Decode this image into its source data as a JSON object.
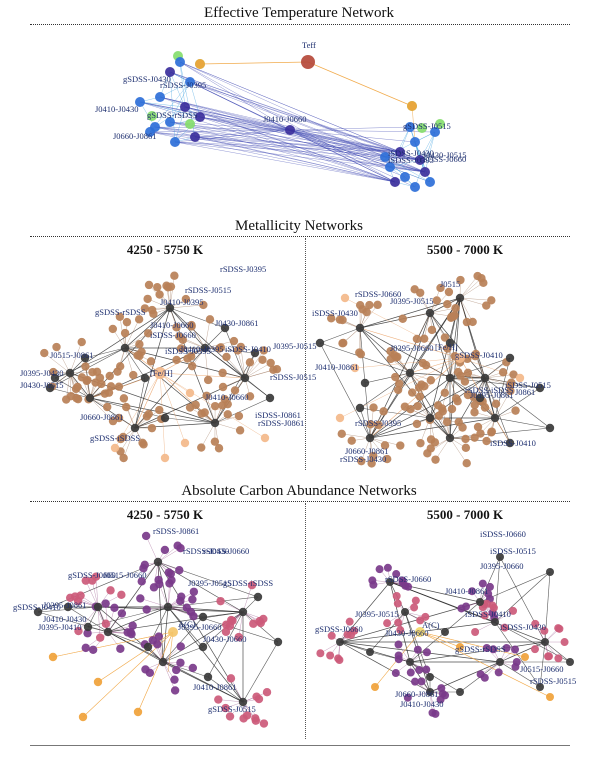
{
  "sections": {
    "teff_title": "Effective Temperature Network",
    "metal_title": "Metallicity Networks",
    "carbon_title": "Absolute Carbon Abundance Networks"
  },
  "panels": {
    "metal_left_title": "4250 - 5750 K",
    "metal_right_title": "5500 - 7000 K",
    "carbon_left_title": "4250 - 5750 K",
    "carbon_right_title": "5500 - 7000 K"
  },
  "colors": {
    "teff_center": "#b5493a",
    "teff_node": "#2e6fd8",
    "teff_dark": "#3b2f9c",
    "teff_light": "#86dd6c",
    "teff_orange": "#f0a23a",
    "metal_node": "#b98057",
    "metal_dark": "#3a3a3a",
    "metal_light": "#f3b98a",
    "carbon_node": "#7a3a8a",
    "carbon_pink": "#cc5a7a",
    "carbon_dark": "#3a3a3a",
    "carbon_orange": "#f0a23a"
  },
  "teff_network": {
    "center": "Teff",
    "labels": [
      "gSDSS-J0430",
      "rSDSS-J0395",
      "J0410-J0430",
      "gSDSS-rSDSS",
      "J0660-J0861",
      "J0410-J0660",
      "gSDSS-J0515",
      "iSDSS-J0430",
      "J0430-J0515",
      "iSDSS-J0395",
      "rSDSS-J0660"
    ]
  },
  "metal_left": {
    "center": "[Fe/H]",
    "labels": [
      "rSDSS-J0395",
      "rSDSS-J0515",
      "J0410-J0395",
      "gSDSS-rSDSS",
      "J0410-J0660",
      "J0430-J0861",
      "iSDSS-J0660",
      "J0515-J0861",
      "J0395-J0430",
      "J0430-J0515",
      "J0410-J0395",
      "iSDSS-J0395",
      "iSDSS-J0410",
      "J0395-J0515",
      "rSDSS-J0515",
      "J0660-J0861",
      "J0410-J0660",
      "gSDSS-iSDSS",
      "rSDSS-J0861",
      "iSDSS-J0861"
    ]
  },
  "metal_right": {
    "center": "[Fe/H]",
    "labels": [
      "rSDSS-J0660",
      "J0395-J0515",
      "J0515",
      "iSDSS-J0430",
      "J0395-J0660",
      "gSDSS-J0410",
      "J0410-J0861",
      "J0395-J0861",
      "rSDSS-J0395",
      "J0660-J0861",
      "rSDSS-J0430",
      "iSDSS-J0410",
      "rSDSS-iSDSS",
      "J0861",
      "iSDSS-J0515"
    ]
  },
  "carbon_left": {
    "center": "A(C)",
    "labels": [
      "rSDSS-J0861",
      "rSDSS-J0430",
      "rSDSS-J0660",
      "gSDSS-J0660",
      "J0515-J0660",
      "gSDSS-iSDSS",
      "J0395-J0515",
      "gSDSS-J0410",
      "J0395-J0861",
      "J0410-J0430",
      "J0395-J0410",
      "J0395-J0660",
      "J0430-J0660",
      "J0410-J0861",
      "gSDSS-J0515"
    ]
  },
  "carbon_right": {
    "center": "A(C)",
    "labels": [
      "iSDSS-J0660",
      "iSDSS-J0515",
      "J0395-J0660",
      "rSDSS-J0660",
      "J0410-J0861",
      "gSDSS-J0660",
      "J0395-J0515",
      "iSDSS-J0410",
      "iSDSS-J0430",
      "J0430-J0660",
      "gSDSS-rSDSS",
      "J0515-J0660",
      "rSDSS-J0515",
      "J0660-J0861",
      "J0410-J0430"
    ]
  }
}
